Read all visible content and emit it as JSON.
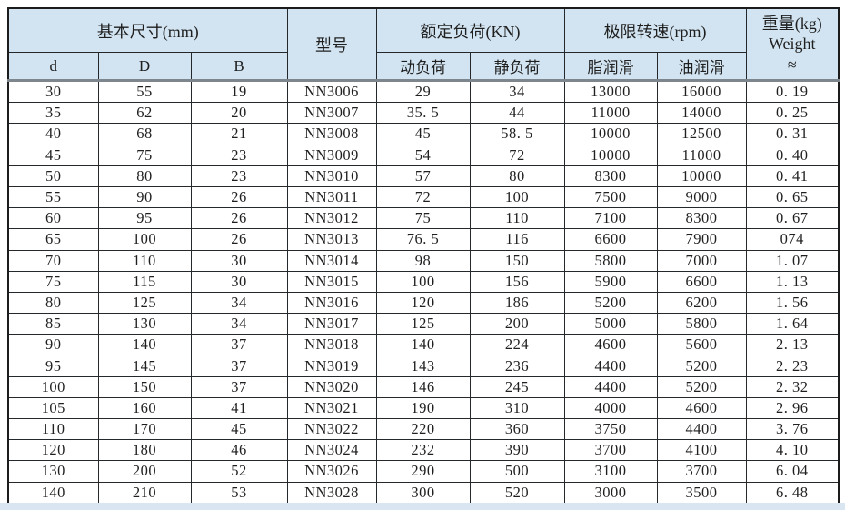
{
  "table": {
    "header": {
      "basic_dims_group": "基本尺寸(mm)",
      "col_d": "d",
      "col_D": "D",
      "col_B": "B",
      "model": "型号",
      "rated_load_group": "额定负荷(KN)",
      "dynamic_load": "动负荷",
      "static_load": "静负荷",
      "limit_speed_group": "极限转速(rpm)",
      "grease_lube": "脂润滑",
      "oil_lube": "油润滑",
      "weight_line1": "重量(kg)",
      "weight_line2": "Weight",
      "weight_line3": "≈"
    },
    "column_keys": [
      "d",
      "D",
      "B",
      "model",
      "dynamic_load",
      "static_load",
      "grease_speed",
      "oil_speed",
      "weight"
    ],
    "rows": [
      [
        "30",
        "55",
        "19",
        "NN3006",
        "29",
        "34",
        "13000",
        "16000",
        "0. 19"
      ],
      [
        "35",
        "62",
        "20",
        "NN3007",
        "35. 5",
        "44",
        "11000",
        "14000",
        "0. 25"
      ],
      [
        "40",
        "68",
        "21",
        "NN3008",
        "45",
        "58. 5",
        "10000",
        "12500",
        "0. 31"
      ],
      [
        "45",
        "75",
        "23",
        "NN3009",
        "54",
        "72",
        "10000",
        "11000",
        "0. 40"
      ],
      [
        "50",
        "80",
        "23",
        "NN3010",
        "57",
        "80",
        "8300",
        "10000",
        "0. 41"
      ],
      [
        "55",
        "90",
        "26",
        "NN3011",
        "72",
        "100",
        "7500",
        "9000",
        "0. 65"
      ],
      [
        "60",
        "95",
        "26",
        "NN3012",
        "75",
        "110",
        "7100",
        "8300",
        "0. 67"
      ],
      [
        "65",
        "100",
        "26",
        "NN3013",
        "76. 5",
        "116",
        "6600",
        "7900",
        "074"
      ],
      [
        "70",
        "110",
        "30",
        "NN3014",
        "98",
        "150",
        "5800",
        "7000",
        "1. 07"
      ],
      [
        "75",
        "115",
        "30",
        "NN3015",
        "100",
        "156",
        "5900",
        "6600",
        "1. 13"
      ],
      [
        "80",
        "125",
        "34",
        "NN3016",
        "120",
        "186",
        "5200",
        "6200",
        "1. 56"
      ],
      [
        "85",
        "130",
        "34",
        "NN3017",
        "125",
        "200",
        "5000",
        "5800",
        "1. 64"
      ],
      [
        "90",
        "140",
        "37",
        "NN3018",
        "140",
        "224",
        "4600",
        "5600",
        "2. 13"
      ],
      [
        "95",
        "145",
        "37",
        "NN3019",
        "143",
        "236",
        "4400",
        "5200",
        "2. 23"
      ],
      [
        "100",
        "150",
        "37",
        "NN3020",
        "146",
        "245",
        "4400",
        "5200",
        "2. 32"
      ],
      [
        "105",
        "160",
        "41",
        "NN3021",
        "190",
        "310",
        "4000",
        "4600",
        "2. 96"
      ],
      [
        "110",
        "170",
        "45",
        "NN3022",
        "220",
        "360",
        "3750",
        "4400",
        "3. 76"
      ],
      [
        "120",
        "180",
        "46",
        "NN3024",
        "232",
        "390",
        "3700",
        "4100",
        "4. 10"
      ],
      [
        "130",
        "200",
        "52",
        "NN3026",
        "290",
        "500",
        "3100",
        "3700",
        "6. 04"
      ],
      [
        "140",
        "210",
        "53",
        "NN3028",
        "300",
        "520",
        "3000",
        "3500",
        "6. 48"
      ]
    ],
    "colors": {
      "header_bg": "#d2e4f1",
      "row_bg": "#ffffff",
      "border": "#25282b",
      "thick_separator": "#7d858d",
      "bottom_strip": "#d9e5f1"
    }
  }
}
